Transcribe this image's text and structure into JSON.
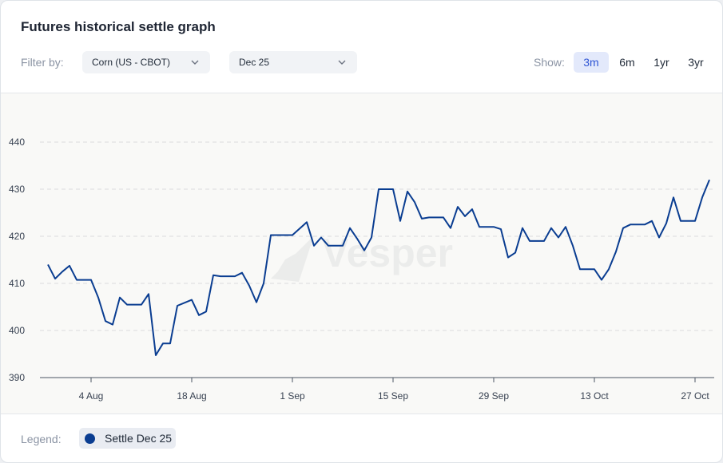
{
  "header": {
    "title": "Futures historical settle graph"
  },
  "filters": {
    "label": "Filter by:",
    "commodity": "Corn (US - CBOT)",
    "contract": "Dec 25"
  },
  "range": {
    "label": "Show:",
    "options": [
      "3m",
      "6m",
      "1yr",
      "3yr"
    ],
    "active": "3m"
  },
  "watermark": "Vesper",
  "legend": {
    "label": "Legend:",
    "series_label": "Settle Dec 25"
  },
  "colors": {
    "line": "#0a3d91",
    "active_bg": "#e3e9fb",
    "active_text": "#2f55d4"
  },
  "chart_data": {
    "type": "line",
    "title": "Futures historical settle graph",
    "xlabel": "",
    "ylabel": "",
    "ylim": [
      390,
      445
    ],
    "xlim": [
      "2025-07-28",
      "2025-10-28"
    ],
    "yticks": [
      390,
      400,
      410,
      420,
      430,
      440
    ],
    "xticks": [
      {
        "date": "2025-08-04",
        "label": "4 Aug"
      },
      {
        "date": "2025-08-18",
        "label": "18 Aug"
      },
      {
        "date": "2025-09-01",
        "label": "1 Sep"
      },
      {
        "date": "2025-09-15",
        "label": "15 Sep"
      },
      {
        "date": "2025-09-29",
        "label": "29 Sep"
      },
      {
        "date": "2025-10-13",
        "label": "13 Oct"
      },
      {
        "date": "2025-10-27",
        "label": "27 Oct"
      }
    ],
    "grid": true,
    "series": [
      {
        "name": "Settle Dec 25",
        "color": "#0a3d91",
        "points": [
          [
            "2025-07-29",
            414.0
          ],
          [
            "2025-07-30",
            411.0
          ],
          [
            "2025-07-31",
            412.5
          ],
          [
            "2025-08-01",
            413.75
          ],
          [
            "2025-08-02",
            410.75
          ],
          [
            "2025-08-04",
            410.75
          ],
          [
            "2025-08-05",
            407.0
          ],
          [
            "2025-08-06",
            402.0
          ],
          [
            "2025-08-07",
            401.25
          ],
          [
            "2025-08-08",
            407.0
          ],
          [
            "2025-08-09",
            405.5
          ],
          [
            "2025-08-11",
            405.5
          ],
          [
            "2025-08-12",
            407.75
          ],
          [
            "2025-08-13",
            394.75
          ],
          [
            "2025-08-14",
            397.25
          ],
          [
            "2025-08-15",
            397.25
          ],
          [
            "2025-08-16",
            405.25
          ],
          [
            "2025-08-18",
            406.5
          ],
          [
            "2025-08-19",
            403.25
          ],
          [
            "2025-08-20",
            404.0
          ],
          [
            "2025-08-21",
            411.75
          ],
          [
            "2025-08-22",
            411.5
          ],
          [
            "2025-08-24",
            411.5
          ],
          [
            "2025-08-25",
            412.25
          ],
          [
            "2025-08-26",
            409.5
          ],
          [
            "2025-08-27",
            406.0
          ],
          [
            "2025-08-28",
            410.0
          ],
          [
            "2025-08-29",
            420.25
          ],
          [
            "2025-08-30",
            420.25
          ],
          [
            "2025-09-01",
            420.25
          ],
          [
            "2025-09-03",
            423.0
          ],
          [
            "2025-09-04",
            418.0
          ],
          [
            "2025-09-05",
            419.75
          ],
          [
            "2025-09-06",
            418.0
          ],
          [
            "2025-09-08",
            418.0
          ],
          [
            "2025-09-09",
            421.75
          ],
          [
            "2025-09-10",
            419.5
          ],
          [
            "2025-09-11",
            417.0
          ],
          [
            "2025-09-12",
            419.75
          ],
          [
            "2025-09-13",
            430.0
          ],
          [
            "2025-09-15",
            430.0
          ],
          [
            "2025-09-16",
            423.25
          ],
          [
            "2025-09-17",
            429.5
          ],
          [
            "2025-09-18",
            427.25
          ],
          [
            "2025-09-19",
            423.75
          ],
          [
            "2025-09-20",
            424.0
          ],
          [
            "2025-09-22",
            424.0
          ],
          [
            "2025-09-23",
            421.75
          ],
          [
            "2025-09-24",
            426.25
          ],
          [
            "2025-09-25",
            424.25
          ],
          [
            "2025-09-26",
            425.75
          ],
          [
            "2025-09-27",
            422.0
          ],
          [
            "2025-09-29",
            422.0
          ],
          [
            "2025-09-30",
            421.5
          ],
          [
            "2025-10-01",
            415.5
          ],
          [
            "2025-10-02",
            416.5
          ],
          [
            "2025-10-03",
            421.75
          ],
          [
            "2025-10-04",
            419.0
          ],
          [
            "2025-10-06",
            419.0
          ],
          [
            "2025-10-07",
            421.75
          ],
          [
            "2025-10-08",
            419.75
          ],
          [
            "2025-10-09",
            422.0
          ],
          [
            "2025-10-10",
            418.0
          ],
          [
            "2025-10-11",
            413.0
          ],
          [
            "2025-10-13",
            413.0
          ],
          [
            "2025-10-14",
            410.75
          ],
          [
            "2025-10-15",
            413.0
          ],
          [
            "2025-10-16",
            416.75
          ],
          [
            "2025-10-17",
            421.75
          ],
          [
            "2025-10-18",
            422.5
          ],
          [
            "2025-10-20",
            422.5
          ],
          [
            "2025-10-21",
            423.25
          ],
          [
            "2025-10-22",
            419.75
          ],
          [
            "2025-10-23",
            422.75
          ],
          [
            "2025-10-24",
            428.25
          ],
          [
            "2025-10-25",
            423.25
          ],
          [
            "2025-10-27",
            423.25
          ],
          [
            "2025-10-28",
            428.25
          ],
          [
            "2025-10-29",
            432.0
          ]
        ]
      }
    ]
  }
}
